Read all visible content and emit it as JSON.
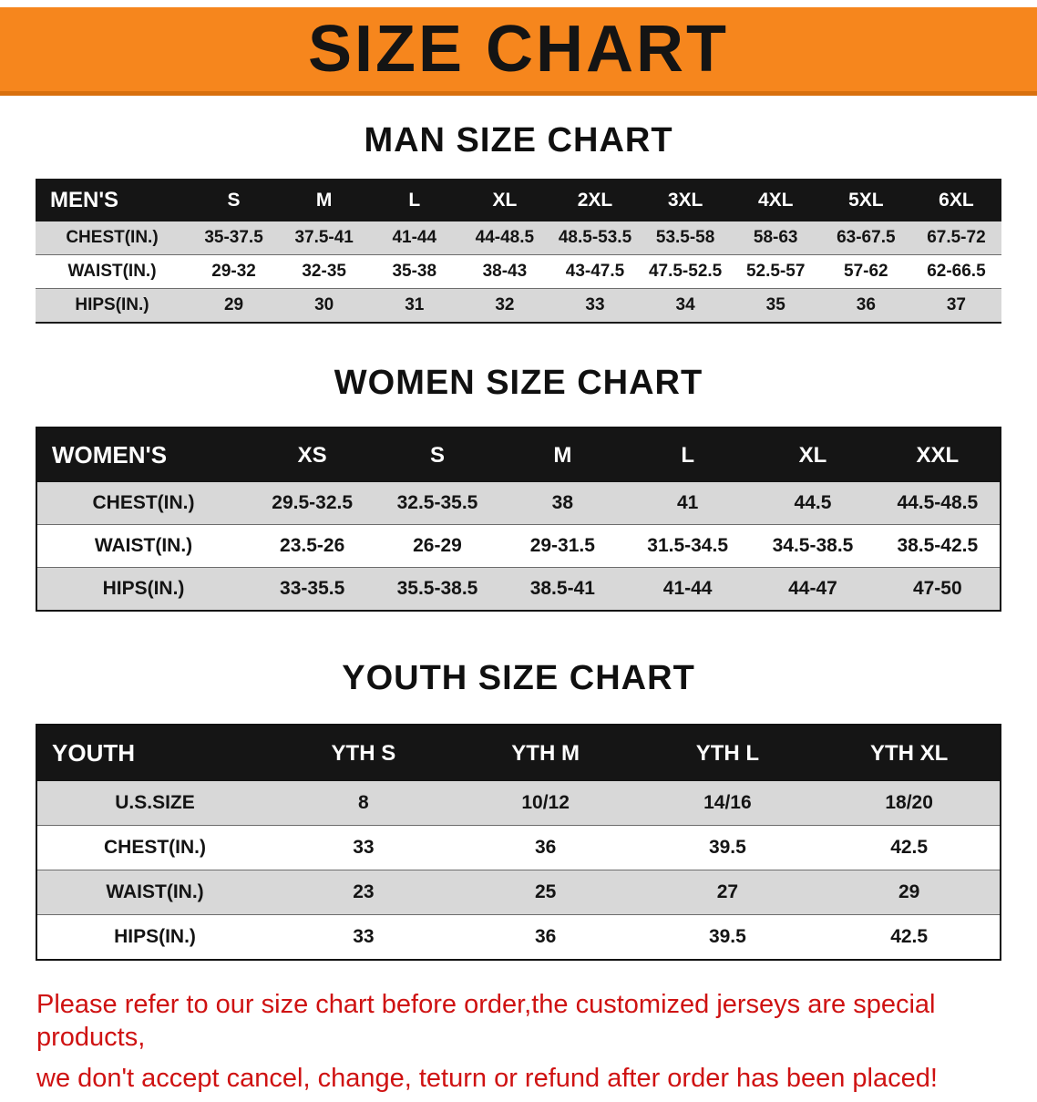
{
  "banner": {
    "title": "SIZE CHART",
    "background_color": "#f6861d"
  },
  "sections": {
    "men": {
      "heading": "MAN SIZE CHART"
    },
    "women": {
      "heading": "WOMEN SIZE CHART"
    },
    "youth": {
      "heading": "YOUTH SIZE CHART"
    }
  },
  "tables": {
    "men": {
      "header": [
        "MEN'S",
        "S",
        "M",
        "L",
        "XL",
        "2XL",
        "3XL",
        "4XL",
        "5XL",
        "6XL"
      ],
      "rows": [
        [
          "CHEST(IN.)",
          "35-37.5",
          "37.5-41",
          "41-44",
          "44-48.5",
          "48.5-53.5",
          "53.5-58",
          "58-63",
          "63-67.5",
          "67.5-72"
        ],
        [
          "WAIST(IN.)",
          "29-32",
          "32-35",
          "35-38",
          "38-43",
          "43-47.5",
          "47.5-52.5",
          "52.5-57",
          "57-62",
          "62-66.5"
        ],
        [
          "HIPS(IN.)",
          "29",
          "30",
          "31",
          "32",
          "33",
          "34",
          "35",
          "36",
          "37"
        ]
      ]
    },
    "women": {
      "header": [
        "WOMEN'S",
        "XS",
        "S",
        "M",
        "L",
        "XL",
        "XXL"
      ],
      "rows": [
        [
          "CHEST(IN.)",
          "29.5-32.5",
          "32.5-35.5",
          "38",
          "41",
          "44.5",
          "44.5-48.5"
        ],
        [
          "WAIST(IN.)",
          "23.5-26",
          "26-29",
          "29-31.5",
          "31.5-34.5",
          "34.5-38.5",
          "38.5-42.5"
        ],
        [
          "HIPS(IN.)",
          "33-35.5",
          "35.5-38.5",
          "38.5-41",
          "41-44",
          "44-47",
          "47-50"
        ]
      ]
    },
    "youth": {
      "header": [
        "YOUTH",
        "YTH S",
        "YTH M",
        "YTH L",
        "YTH XL"
      ],
      "rows": [
        [
          "U.S.SIZE",
          "8",
          "10/12",
          "14/16",
          "18/20"
        ],
        [
          "CHEST(IN.)",
          "33",
          "36",
          "39.5",
          "42.5"
        ],
        [
          "WAIST(IN.)",
          "23",
          "25",
          "27",
          "29"
        ],
        [
          "HIPS(IN.)",
          "33",
          "36",
          "39.5",
          "42.5"
        ]
      ]
    }
  },
  "disclaimer": {
    "color": "#cf1212",
    "lines": [
      "Please refer to our size chart before order,the customized jerseys are special products,",
      "we don't accept cancel, change, teturn or refund after order has been placed!"
    ]
  }
}
